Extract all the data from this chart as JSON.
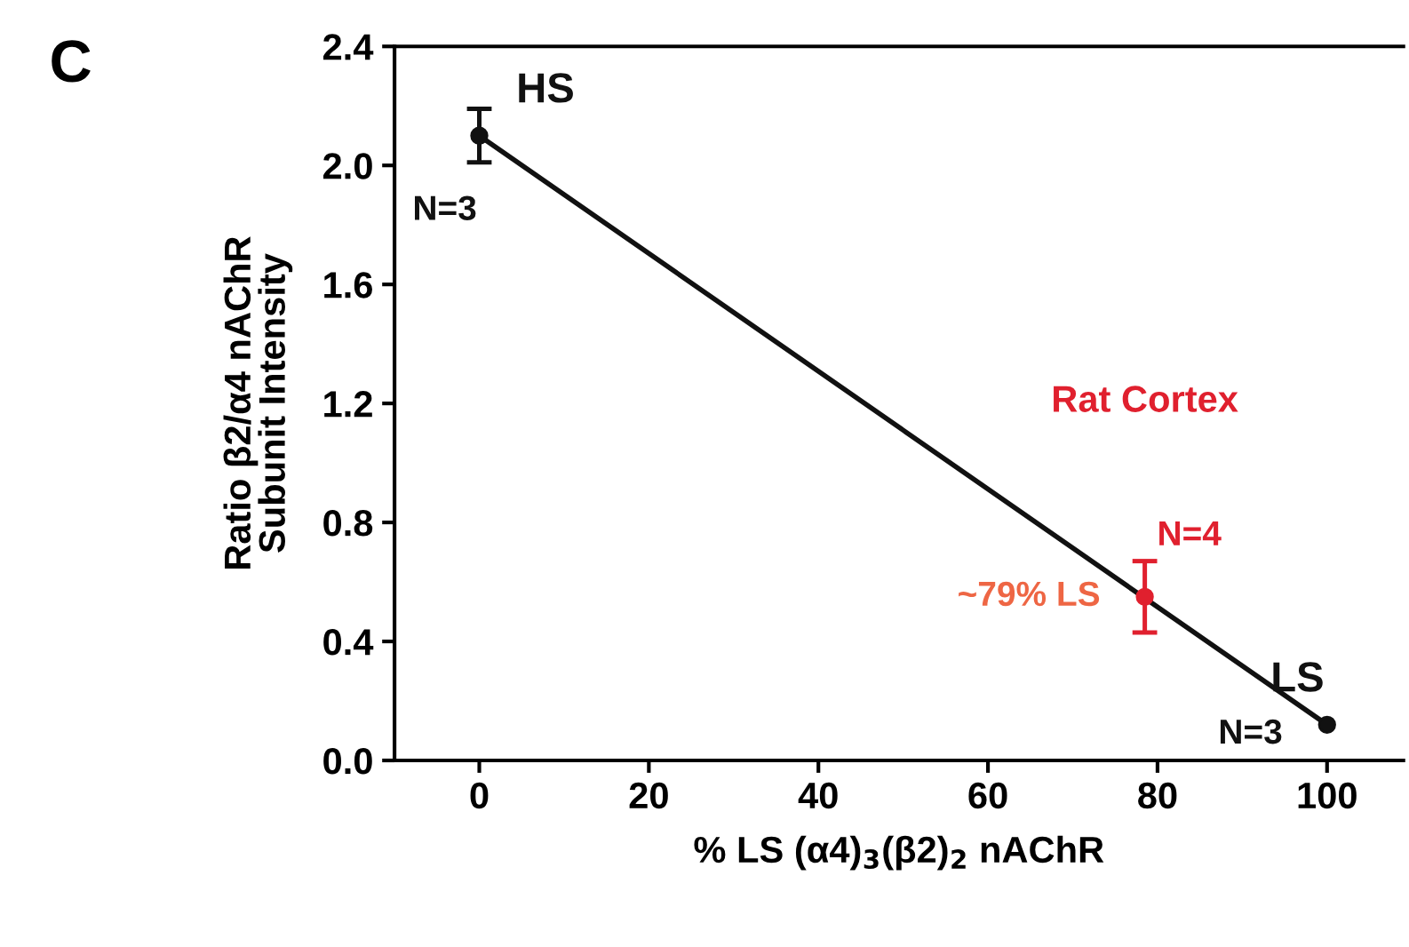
{
  "chart_data": {
    "type": "scatter",
    "xlabel": "% LS (α4)$_{3}$(β2)$_{2}$ nAChR",
    "ylabel": "Ratio β2/α4 nAChR\nSubunit Intensity",
    "xlim": [
      -10,
      109
    ],
    "xticks": [
      0,
      20,
      40,
      60,
      80,
      100
    ],
    "ylim": [
      0,
      2.4
    ],
    "yticks": [
      {
        "value": 0,
        "label": "0.0"
      },
      0.4,
      0.8,
      1.2,
      1.6,
      {
        "value": 2,
        "label": "2.0"
      },
      2.4
    ],
    "grid": false,
    "legend": false,
    "marker": "circle",
    "series": [
      {
        "type": "line",
        "color": "#111111",
        "x": [
          0,
          100
        ],
        "values": [
          2.1,
          0.12
        ],
        "marker": "none"
      },
      {
        "color": "#111111",
        "x": [
          0,
          100
        ],
        "values": [
          2.1,
          0.12
        ],
        "errors": [
          0.09,
          null
        ]
      },
      {
        "name": "Rat Cortex",
        "color": "#e0202e",
        "x": [
          78.5
        ],
        "values": [
          0.55
        ],
        "errors": [
          0.12
        ]
      }
    ],
    "annotations": [
      "C",
      {
        "text": "HS",
        "x": 0,
        "y": 2.1
      },
      {
        "text": "N=3",
        "x": 0,
        "y": 2.1
      },
      {
        "text": "LS",
        "x": 100,
        "y": 0.12
      },
      {
        "text": "N=3",
        "x": 100,
        "y": 0.12
      },
      {
        "text": "N=4",
        "x": 78.5,
        "y": 0.55
      },
      {
        "text": "~79% LS",
        "x": 78.5,
        "y": 0.55
      }
    ]
  }
}
